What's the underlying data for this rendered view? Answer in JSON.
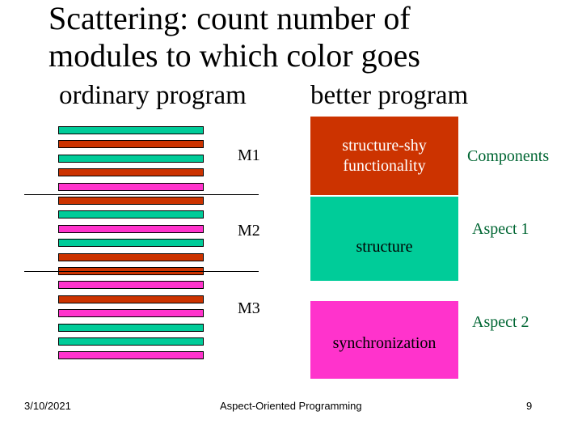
{
  "slide": {
    "title_line1": "Scattering: count number of",
    "title_line2": "modules to which color goes",
    "left_heading": "ordinary program",
    "right_heading": "better program"
  },
  "modules": [
    "M1",
    "M2",
    "M3"
  ],
  "stripes": [
    "green",
    "red",
    "green",
    "red",
    "magenta",
    "red",
    "green",
    "magenta",
    "green",
    "red",
    "red",
    "magenta",
    "red",
    "magenta",
    "green",
    "green",
    "magenta"
  ],
  "colors": {
    "green": "#00cc99",
    "red": "#cc3300",
    "magenta": "#ff33cc",
    "dark_green": "#006633"
  },
  "boxes": [
    {
      "label": "structure-shy functionality",
      "color": "red",
      "side_label": "Components"
    },
    {
      "label": "structure",
      "color": "green",
      "side_label": "Aspect 1"
    },
    {
      "label": "synchronization",
      "color": "magenta",
      "side_label": "Aspect 2"
    }
  ],
  "footer": {
    "date": "3/10/2021",
    "center": "Aspect-Oriented Programming",
    "page": "9"
  }
}
